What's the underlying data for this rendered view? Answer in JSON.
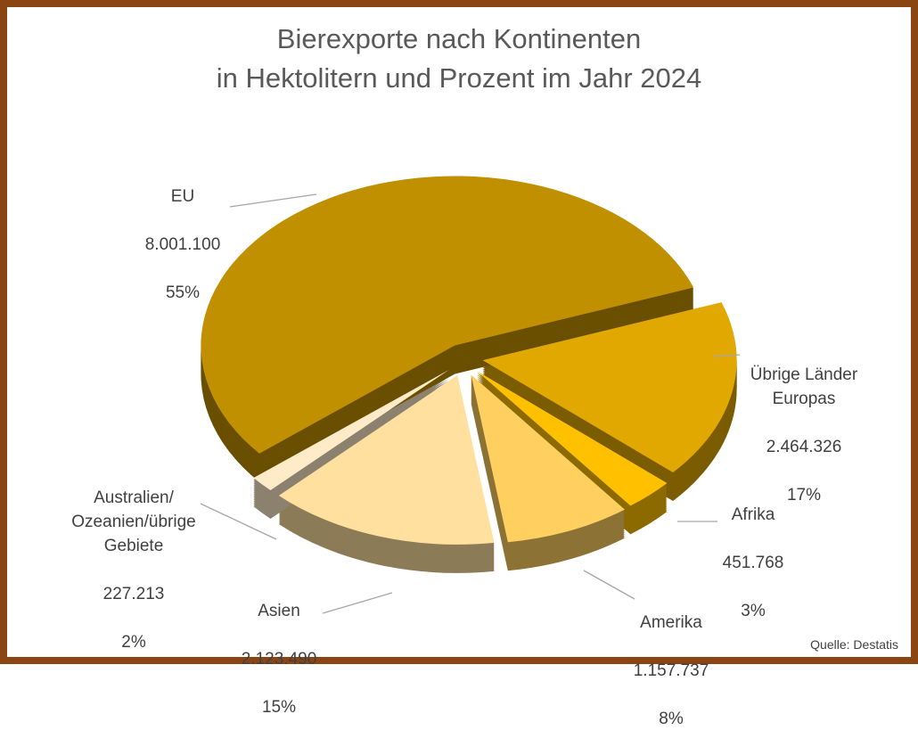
{
  "chart_data": {
    "type": "pie",
    "title": "Bierexporte nach Kontinenten\nin Hektolitern und Prozent im Jahr 2024",
    "style": "3d-exploded",
    "slices": [
      {
        "name": "Übrige Länder\nEuropas",
        "value": 2464326,
        "value_label": "2.464.326",
        "percent": "17%",
        "color": "#E0A800"
      },
      {
        "name": "Afrika",
        "value": 451768,
        "value_label": "451.768",
        "percent": "3%",
        "color": "#FFC000"
      },
      {
        "name": "Amerika",
        "value": 1157737,
        "value_label": "1.157.737",
        "percent": "8%",
        "color": "#FFD060"
      },
      {
        "name": "Asien",
        "value": 2123490,
        "value_label": "2.123.490",
        "percent": "15%",
        "color": "#FFE09E"
      },
      {
        "name": "Australien/\nOzeanien/übrige\nGebiete",
        "value": 227213,
        "value_label": "227.213",
        "percent": "2%",
        "color": "#FFEBC8"
      },
      {
        "name": "EU",
        "value": 8001100,
        "value_label": "8.001.100",
        "percent": "55%",
        "color": "#C09000"
      }
    ],
    "source": "Quelle: Destatis",
    "legend": "none"
  },
  "colors": {
    "frame": "#8B4513",
    "title": "#595959"
  }
}
